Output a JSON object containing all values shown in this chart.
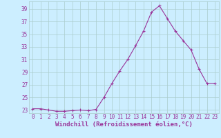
{
  "x": [
    0,
    1,
    2,
    3,
    4,
    5,
    6,
    7,
    8,
    9,
    10,
    11,
    12,
    13,
    14,
    15,
    16,
    17,
    18,
    19,
    20,
    21,
    22,
    23
  ],
  "y": [
    23.2,
    23.2,
    23.0,
    22.8,
    22.8,
    22.9,
    23.0,
    22.9,
    23.1,
    25.0,
    27.2,
    29.2,
    31.0,
    33.2,
    35.5,
    38.5,
    39.5,
    37.5,
    35.5,
    34.0,
    32.5,
    29.5,
    27.2,
    27.2
  ],
  "line_color": "#993399",
  "marker": "+",
  "markersize": 3,
  "linewidth": 0.8,
  "bg_color": "#cceeff",
  "grid_color": "#aacccc",
  "xlabel": "Windchill (Refroidissement éolien,°C)",
  "yticks": [
    23,
    25,
    27,
    29,
    31,
    33,
    35,
    37,
    39
  ],
  "xticks": [
    0,
    1,
    2,
    3,
    4,
    5,
    6,
    7,
    8,
    9,
    10,
    11,
    12,
    13,
    14,
    15,
    16,
    17,
    18,
    19,
    20,
    21,
    22,
    23
  ],
  "ylim": [
    22.5,
    40.2
  ],
  "xlim": [
    -0.5,
    23.5
  ],
  "tick_fontsize": 5.5,
  "xlabel_fontsize": 6.5
}
